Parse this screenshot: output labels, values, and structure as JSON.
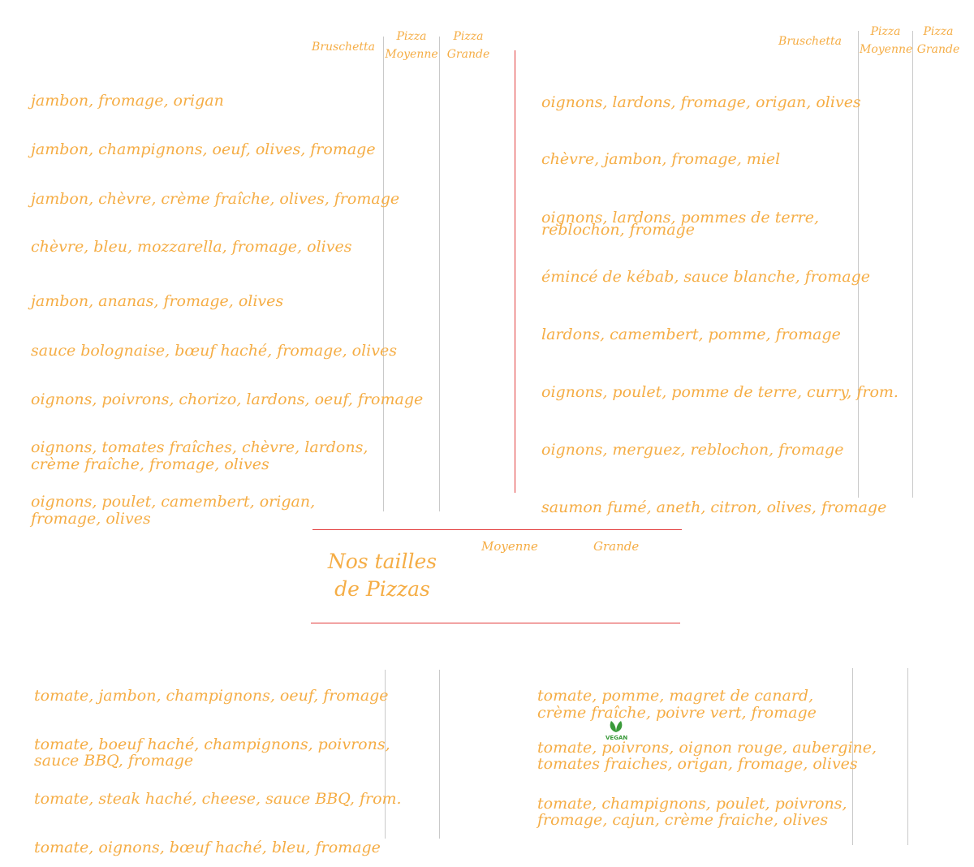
{
  "left_header": {
    "bruschetta": "Bruschetta",
    "moyenne": "Pizza Moyenne",
    "grande": "Pizza Grande"
  },
  "right_header": {
    "bruschetta": "Bruschetta",
    "moyenne": "Pizza Moyenne",
    "grande": "Pizza Grande"
  },
  "left_items": [
    "jambon, fromage, origan",
    "jambon, champignons, oeuf, olives, fromage",
    "jambon, chèvre, crème fraîche, olives, fromage",
    "chèvre, bleu, mozzarella, fromage, olives",
    "jambon, ananas, fromage, olives",
    "sauce bolognaise, bœuf haché, fromage, olives",
    "oignons, poivrons, chorizo, lardons, oeuf, fromage",
    "oignons, tomates fraîches, chèvre, lardons,",
    "crème fraîche, fromage, olives",
    "oignons, poulet, camembert, origan,",
    "fromage, olives"
  ],
  "right_items": [
    "oignons, lardons, fromage, origan, olives",
    "chèvre, jambon, fromage, miel",
    "oignons, lardons, pommes de terre,",
    "reblochon, fromage",
    "émincé de kébab, sauce blanche, fromage",
    "lardons, camembert, pomme, fromage",
    "oignons, poulet, pomme de terre, curry, from.",
    "oignons, merguez, reblochon, fromage",
    "saumon fumé, aneth, citron, olives, fromage"
  ],
  "sizes": {
    "title_line1": "Nos tailles",
    "title_line2": "de Pizzas",
    "moyenne": "Moyenne",
    "grande": "Grande"
  },
  "bottom_left": [
    "tomate, jambon, champignons, oeuf, fromage",
    "tomate, boeuf haché, champignons, poivrons,",
    "sauce BBQ, fromage",
    "tomate, steak haché, cheese, sauce BBQ, from.",
    "tomate, oignons, bœuf haché, bleu, fromage"
  ],
  "bottom_right": [
    "tomate, pomme, magret de canard,",
    "crème fraîche, poivre vert, fromage",
    "tomate, poivrons, oignon rouge, aubergine,",
    "tomates fraiches, origan, fromage, olives",
    "tomate, champignons, poulet, poivrons,",
    "fromage, cajun, crème fraiche, olives"
  ],
  "vegan_badge": {
    "label": "VEGAN",
    "icon": "leaf-icon",
    "color": "#3a9a3a"
  },
  "colors": {
    "text": "#f5ad45",
    "red_rule": "#e23b3b",
    "column_rule": "#c9c9c9"
  }
}
